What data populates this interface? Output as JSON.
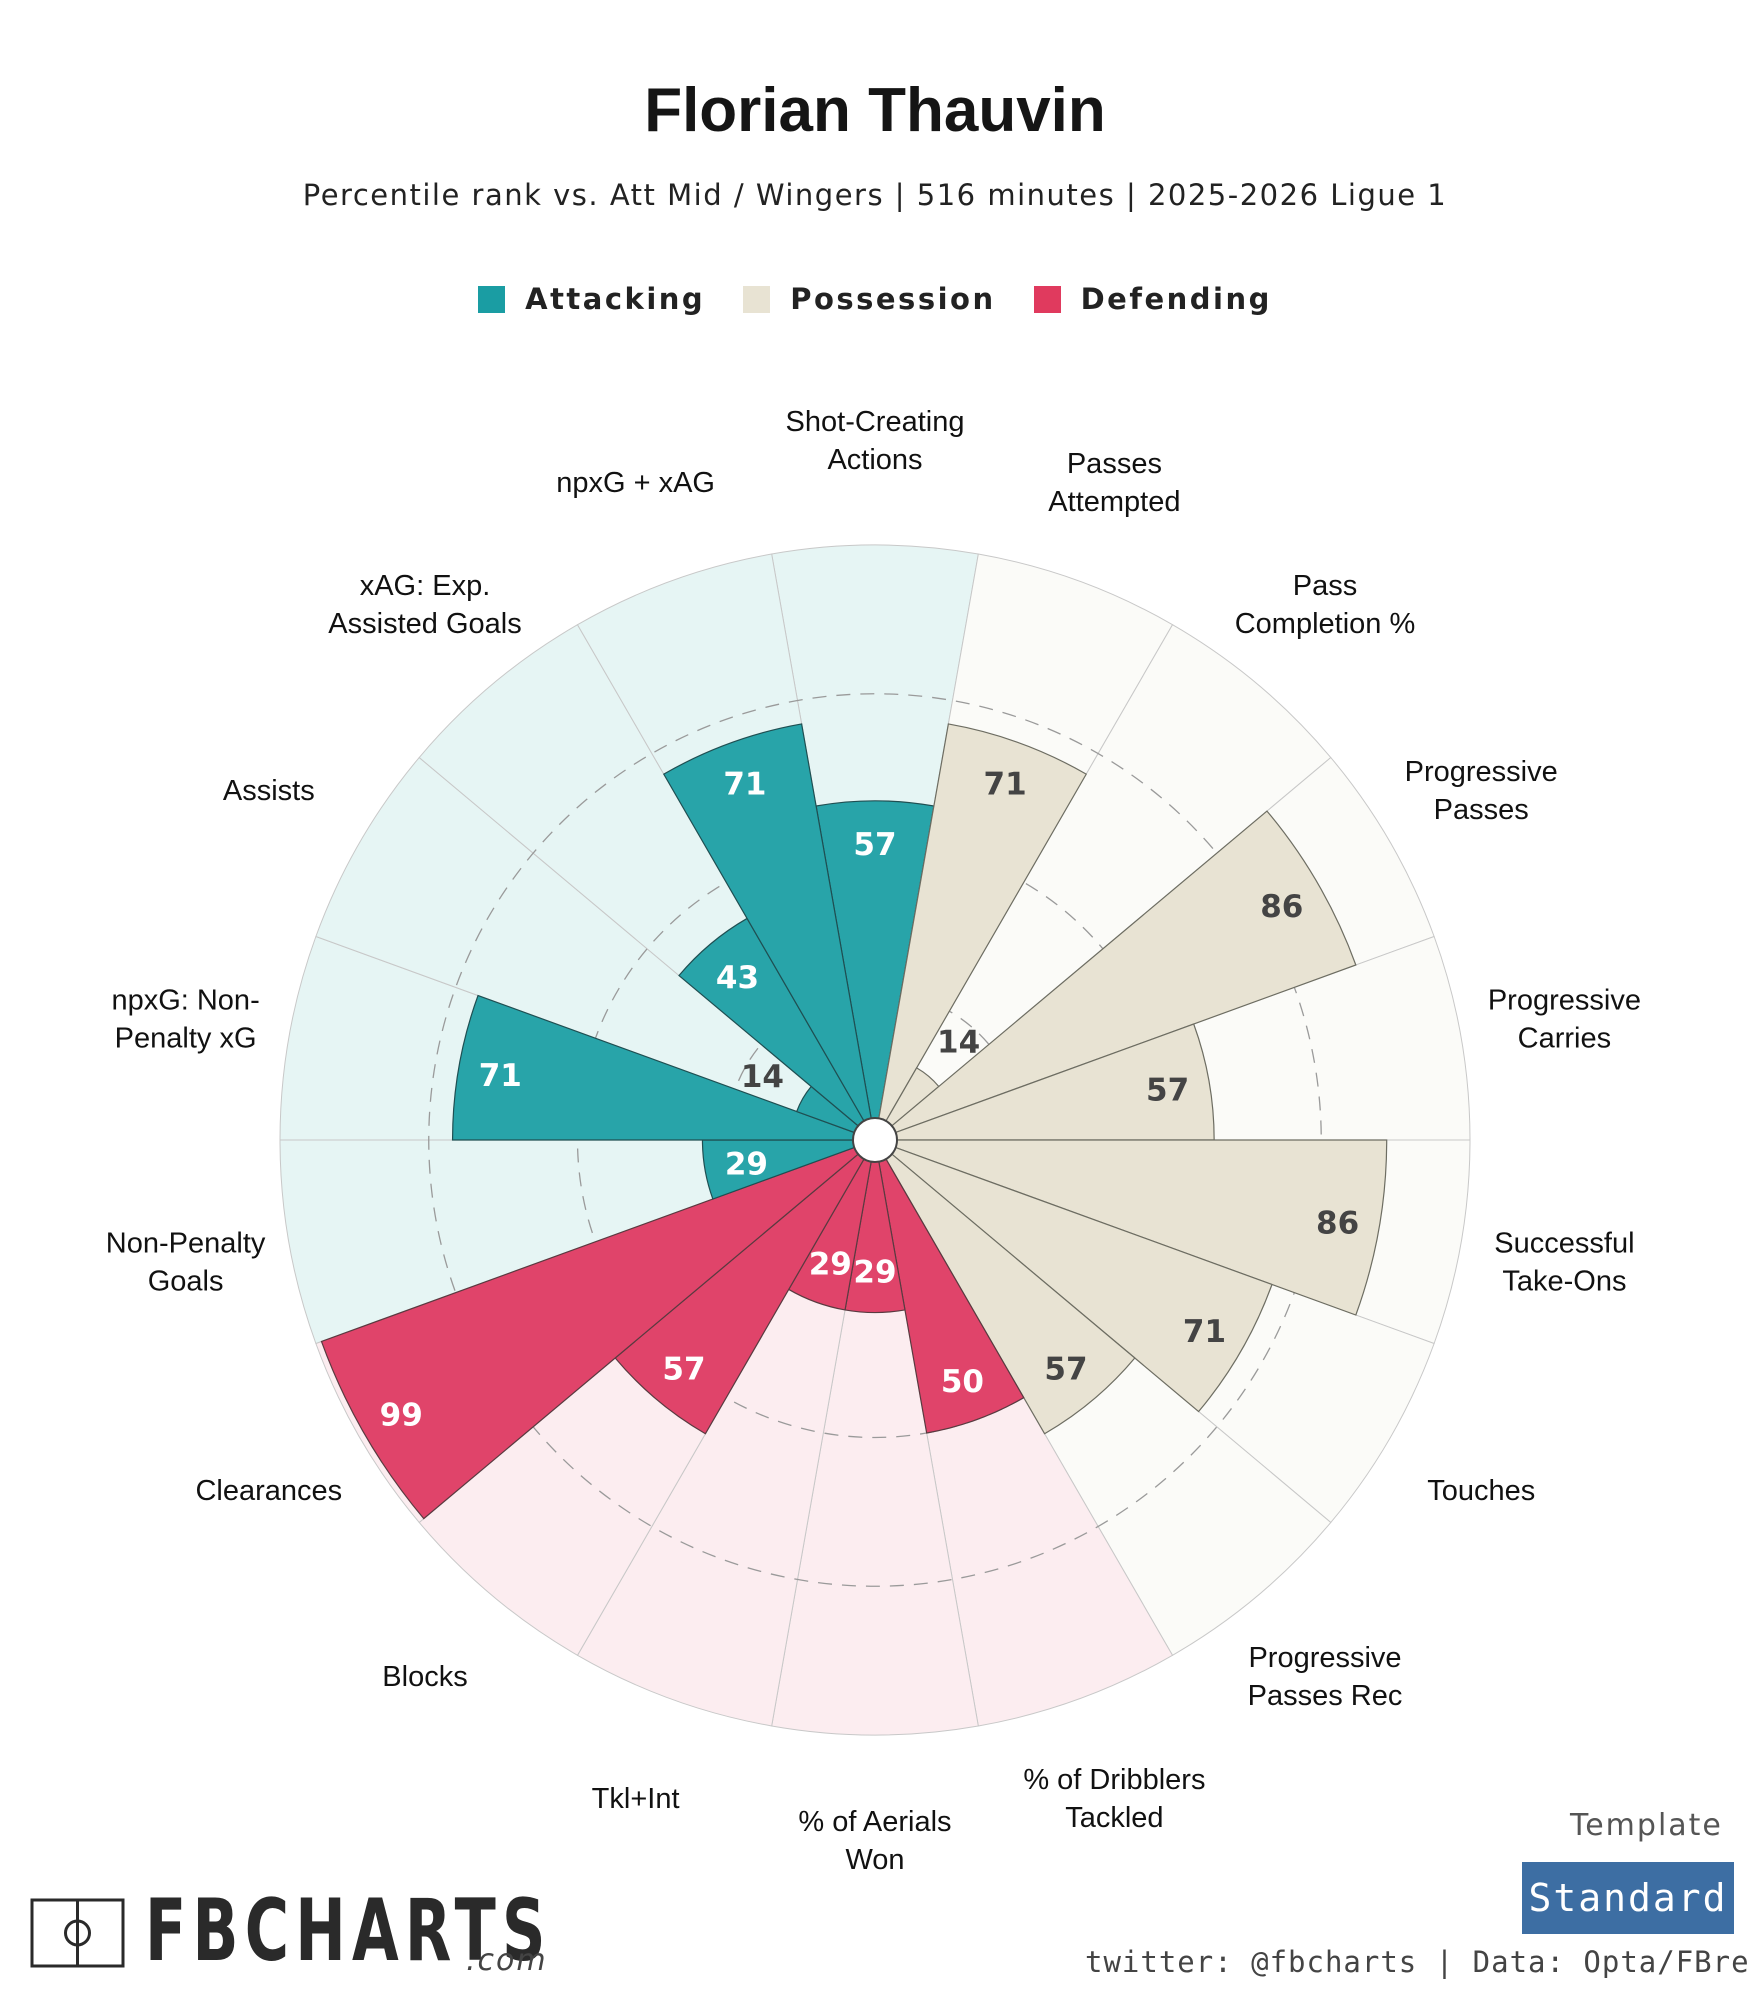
{
  "header": {
    "title": "Florian Thauvin",
    "subtitle": "Percentile rank vs. Att Mid / Wingers | 516 minutes | 2025-2026 Ligue 1"
  },
  "legend": [
    {
      "label": "Attacking",
      "color": "#1a9da3"
    },
    {
      "label": "Possession",
      "color": "#e8e3d3"
    },
    {
      "label": "Defending",
      "color": "#e03a5e"
    }
  ],
  "colors": {
    "Attacking": {
      "fill": "#28a4a9",
      "bg": "#e6f5f4"
    },
    "Possession": {
      "fill": "#e8e3d3",
      "bg": "#fbfbf8"
    },
    "Defending": {
      "fill": "#e0446a",
      "bg": "#fcedf0"
    }
  },
  "chart_data": {
    "type": "radar",
    "scale": [
      0,
      100
    ],
    "grid_rings": [
      25,
      50,
      75
    ],
    "categories": [
      {
        "label": "Shot-Creating\nActions",
        "value": 57,
        "group": "Attacking"
      },
      {
        "label": "Passes\nAttempted",
        "value": 71,
        "group": "Possession"
      },
      {
        "label": "Pass\nCompletion %",
        "value": 14,
        "group": "Possession"
      },
      {
        "label": "Progressive\nPasses",
        "value": 86,
        "group": "Possession"
      },
      {
        "label": "Progressive\nCarries",
        "value": 57,
        "group": "Possession"
      },
      {
        "label": "Successful\nTake-Ons",
        "value": 86,
        "group": "Possession"
      },
      {
        "label": "Touches",
        "value": 71,
        "group": "Possession"
      },
      {
        "label": "Progressive\nPasses Rec",
        "value": 57,
        "group": "Possession"
      },
      {
        "label": "% of Dribblers\nTackled",
        "value": 50,
        "group": "Defending"
      },
      {
        "label": "% of Aerials\nWon",
        "value": 29,
        "group": "Defending"
      },
      {
        "label": "Tkl+Int",
        "value": 29,
        "group": "Defending"
      },
      {
        "label": "Blocks",
        "value": 57,
        "group": "Defending"
      },
      {
        "label": "Clearances",
        "value": 99,
        "group": "Defending"
      },
      {
        "label": "Non-Penalty\nGoals",
        "value": 29,
        "group": "Attacking"
      },
      {
        "label": "npxG: Non-\nPenalty xG",
        "value": 71,
        "group": "Attacking"
      },
      {
        "label": "Assists",
        "value": 14,
        "group": "Attacking"
      },
      {
        "label": "xAG: Exp.\nAssisted Goals",
        "value": 43,
        "group": "Attacking"
      },
      {
        "label": "npxG + xAG",
        "value": 71,
        "group": "Attacking"
      }
    ]
  },
  "footer": {
    "template_label": "Template",
    "template_value": "Standard",
    "credit": "twitter: @fbcharts | Data: Opta/FBref",
    "logo_text": "FBCHARTS",
    "logo_suffix": ".com"
  }
}
